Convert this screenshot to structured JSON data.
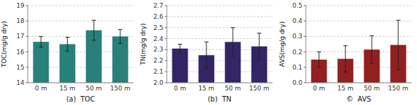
{
  "chart_data": [
    {
      "type": "bar",
      "categories": [
        "0 m",
        "15 m",
        "50 m",
        "150 m"
      ],
      "values": [
        16.65,
        16.5,
        17.4,
        17.0
      ],
      "errors": [
        0.35,
        0.45,
        0.65,
        0.45
      ],
      "color": "#27807a",
      "ylabel": "TOC(mg/g dry)",
      "xlabel": "(a)  TOC",
      "ylim": [
        14,
        19
      ],
      "yticks": [
        14,
        15,
        16,
        17,
        18,
        19
      ],
      "grid": true
    },
    {
      "type": "bar",
      "categories": [
        "0 m",
        "15 m",
        "50 m",
        "150 m"
      ],
      "values": [
        2.31,
        2.25,
        2.37,
        2.33
      ],
      "errors": [
        0.04,
        0.12,
        0.13,
        0.12
      ],
      "color": "#332566",
      "ylabel": "TN(mg/g dry)",
      "xlabel": "(b)  TN",
      "ylim": [
        2.0,
        2.7
      ],
      "yticks": [
        {
          "value": 2.0,
          "label": "2.0"
        },
        2.1,
        2.2,
        2.3,
        2.4,
        2.5,
        2.6,
        2.7
      ],
      "grid": true
    },
    {
      "type": "bar",
      "categories": [
        "0 m",
        "15 m",
        "50 m",
        "150 m"
      ],
      "values": [
        0.15,
        0.155,
        0.215,
        0.245
      ],
      "errors": [
        0.05,
        0.085,
        0.09,
        0.16
      ],
      "color": "#922020",
      "ylabel": "AVS(mg/g dry)",
      "xlabel": "©  AVS",
      "ylim": [
        0.0,
        0.5
      ],
      "yticks": [
        {
          "value": 0.0,
          "label": "0.0"
        },
        0.1,
        0.2,
        0.3,
        0.4,
        0.5
      ],
      "grid": true
    }
  ]
}
